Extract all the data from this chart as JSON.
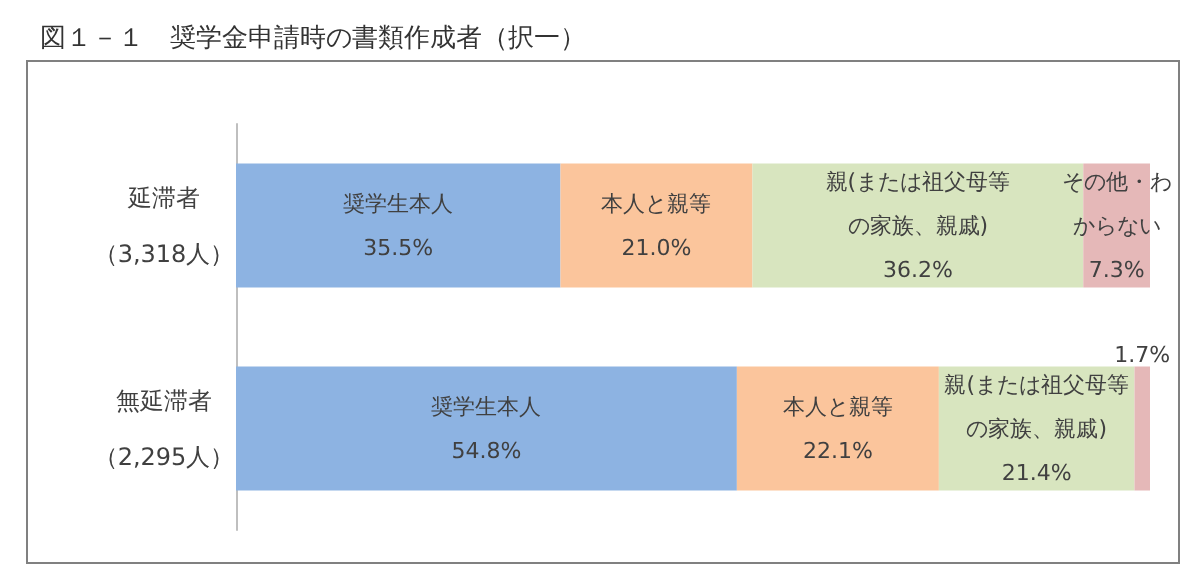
{
  "chart_data": {
    "type": "bar",
    "title": "図１－１　奨学金申請時の書類作成者（択一）",
    "orientation": "horizontal",
    "stacked": true,
    "tick_labels": "y",
    "grid": false,
    "categories": [
      "延滞者（3,318人）",
      "無延滞者（2,295人）"
    ],
    "xlim": [
      0,
      100
    ],
    "series": [
      {
        "name": "奨学生本人",
        "color": "#8db3e2",
        "values": [
          35.5,
          54.8
        ],
        "value_labels": [
          "35.5%",
          "54.8%"
        ]
      },
      {
        "name": "本人と親等",
        "color": "#fbc59c",
        "values": [
          21.0,
          22.1
        ],
        "value_labels": [
          "21.0%",
          "22.1%"
        ]
      },
      {
        "name": "親(または祖父母等の家族、親戚)",
        "color": "#d8e5bf",
        "values": [
          36.2,
          21.4
        ],
        "value_labels": [
          "36.2%",
          "21.4%"
        ]
      },
      {
        "name": "その他・わからない",
        "color": "#e5b8b8",
        "values": [
          7.3,
          1.7
        ],
        "value_labels": [
          "7.3%",
          "1.7%"
        ]
      }
    ]
  }
}
